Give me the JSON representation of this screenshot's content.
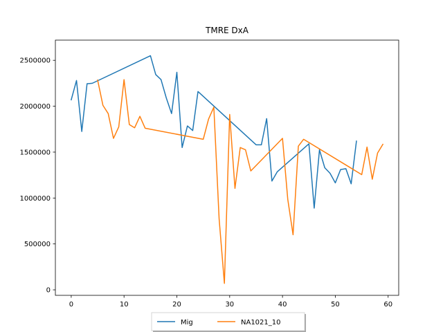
{
  "chart_data": {
    "type": "line",
    "title": "TMRE DxA",
    "xlabel": "",
    "ylabel": "",
    "xlim": [
      -3,
      62
    ],
    "ylim": [
      -60000,
      2720000
    ],
    "xticks": [
      0,
      10,
      20,
      30,
      40,
      50,
      60
    ],
    "yticks": [
      0,
      500000,
      1000000,
      1500000,
      2000000,
      2500000
    ],
    "grid": false,
    "legend_position": "bottom-center",
    "series": [
      {
        "name": "Mig",
        "color": "#1f77b4",
        "points": [
          [
            0,
            2070000
          ],
          [
            1,
            2280000
          ],
          [
            2,
            1725000
          ],
          [
            3,
            2245000
          ],
          [
            4,
            2250000
          ],
          [
            15,
            2550000
          ],
          [
            16,
            2345000
          ],
          [
            17,
            2290000
          ],
          [
            18,
            2090000
          ],
          [
            19,
            1920000
          ],
          [
            20,
            2370000
          ],
          [
            21,
            1550000
          ],
          [
            22,
            1785000
          ],
          [
            23,
            1735000
          ],
          [
            24,
            2160000
          ],
          [
            35,
            1580000
          ],
          [
            36,
            1580000
          ],
          [
            37,
            1865000
          ],
          [
            38,
            1185000
          ],
          [
            39,
            1285000
          ],
          [
            45,
            1590000
          ],
          [
            46,
            890000
          ],
          [
            47,
            1525000
          ],
          [
            48,
            1330000
          ],
          [
            49,
            1270000
          ],
          [
            50,
            1165000
          ],
          [
            51,
            1310000
          ],
          [
            52,
            1320000
          ],
          [
            53,
            1155000
          ],
          [
            54,
            1620000
          ]
        ]
      },
      {
        "name": "NA1021_10",
        "color": "#ff7f0e",
        "points": [
          [
            5,
            2285000
          ],
          [
            6,
            2010000
          ],
          [
            7,
            1920000
          ],
          [
            8,
            1650000
          ],
          [
            9,
            1775000
          ],
          [
            10,
            2290000
          ],
          [
            11,
            1800000
          ],
          [
            12,
            1765000
          ],
          [
            13,
            1890000
          ],
          [
            14,
            1760000
          ],
          [
            25,
            1640000
          ],
          [
            26,
            1860000
          ],
          [
            27,
            1990000
          ],
          [
            28,
            775000
          ],
          [
            29,
            70000
          ],
          [
            30,
            1910000
          ],
          [
            31,
            1105000
          ],
          [
            32,
            1550000
          ],
          [
            33,
            1525000
          ],
          [
            34,
            1295000
          ],
          [
            40,
            1650000
          ],
          [
            41,
            985000
          ],
          [
            42,
            600000
          ],
          [
            43,
            1565000
          ],
          [
            44,
            1640000
          ],
          [
            55,
            1255000
          ],
          [
            56,
            1555000
          ],
          [
            57,
            1205000
          ],
          [
            58,
            1490000
          ],
          [
            59,
            1585000
          ]
        ]
      }
    ]
  }
}
